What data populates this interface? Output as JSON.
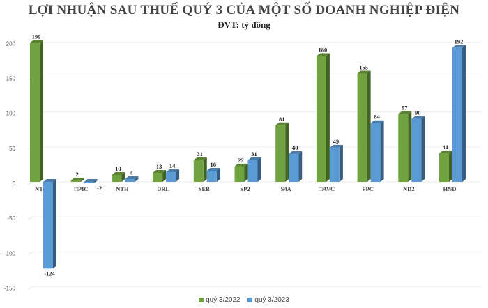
{
  "chart_data": {
    "type": "bar",
    "title": "LỢI NHUẬN SAU THUẾ QUÝ 3 CỦA MỘT SỐ DOANH NGHIỆP ĐIỆN",
    "subtitle": "ĐVT: tỷ đồng",
    "categories": [
      "NT2",
      "□PIC",
      "NTH",
      "DRL",
      "SEB",
      "SP2",
      "S4A",
      "□AVC",
      "PPC",
      "ND2",
      "HND"
    ],
    "series": [
      {
        "name": "quý 3/2022",
        "color": "#70a33f",
        "values": [
          199,
          2,
          10,
          13,
          31,
          22,
          81,
          180,
          155,
          97,
          41
        ]
      },
      {
        "name": "quý 3/2023",
        "color": "#5b9bd5",
        "values": [
          -124,
          -2,
          4,
          14,
          16,
          31,
          40,
          49,
          84,
          90,
          192
        ]
      }
    ],
    "yticks": [
      200,
      150,
      100,
      50,
      0,
      -50,
      -100,
      -150
    ],
    "ylim": [
      -150,
      200
    ],
    "grid": true,
    "legend": "bottom",
    "style": "3d-clustered-column"
  }
}
